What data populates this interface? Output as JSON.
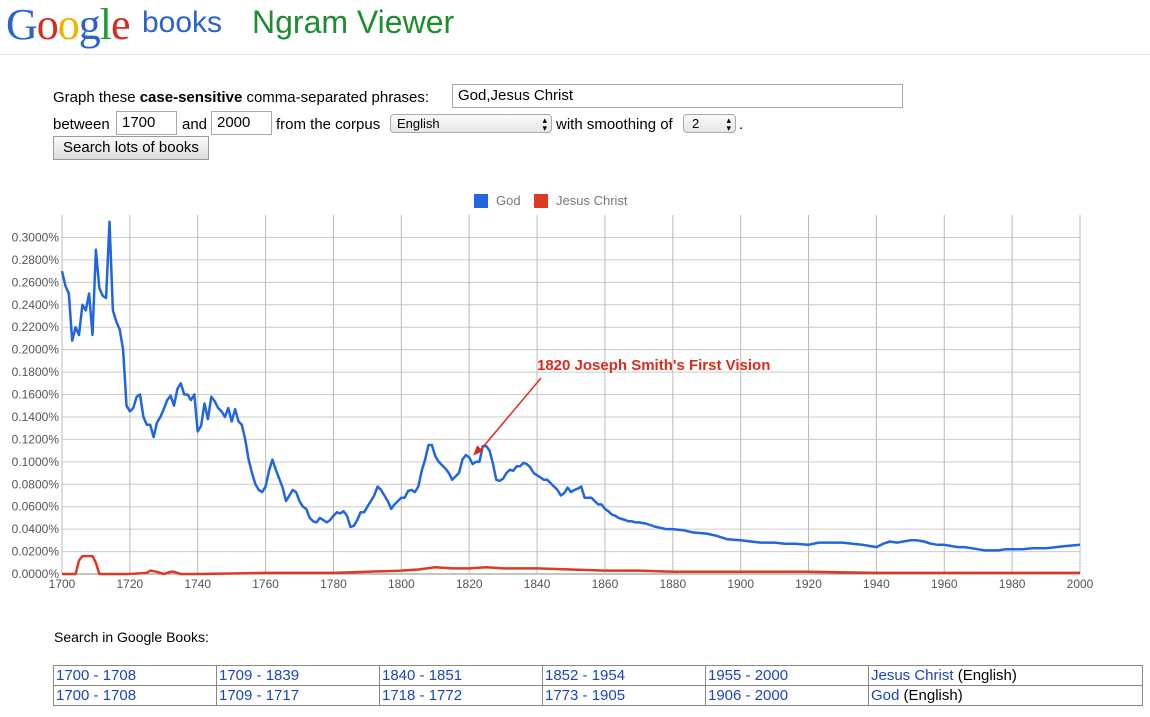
{
  "header": {
    "logo_letters": [
      {
        "ch": "G",
        "color": "#2a62d4"
      },
      {
        "ch": "o",
        "color": "#d62d20"
      },
      {
        "ch": "o",
        "color": "#f1b200"
      },
      {
        "ch": "g",
        "color": "#2a62d4"
      },
      {
        "ch": "l",
        "color": "#1e9e36"
      },
      {
        "ch": "e",
        "color": "#d62d20"
      }
    ],
    "books_text": "books",
    "title": "Ngram Viewer"
  },
  "form": {
    "graph_prefix": "Graph these ",
    "graph_bold": "case-sensitive",
    "graph_suffix": " comma-separated phrases:",
    "phrases_value": "God,Jesus Christ",
    "between_label": "between",
    "start_year": "1700",
    "and_label": "and",
    "end_year": "2000",
    "corpus_label": "from the corpus",
    "corpus_value": "English",
    "smoothing_label": "with smoothing of",
    "smoothing_value": "2",
    "period": ".",
    "search_button": "Search lots of books"
  },
  "chart_data": {
    "type": "line",
    "xlim": [
      1700,
      2000
    ],
    "ylim": [
      0,
      0.32
    ],
    "x_ticks": [
      1700,
      1720,
      1740,
      1760,
      1780,
      1800,
      1820,
      1840,
      1860,
      1880,
      1900,
      1920,
      1940,
      1960,
      1980,
      2000
    ],
    "y_ticks": [
      0,
      0.02,
      0.04,
      0.06,
      0.08,
      0.1,
      0.12,
      0.14,
      0.16,
      0.18,
      0.2,
      0.22,
      0.24,
      0.26,
      0.28,
      0.3
    ],
    "y_tick_labels": [
      "0.0000%",
      "0.0200%",
      "0.0400%",
      "0.0600%",
      "0.0800%",
      "0.1000%",
      "0.1200%",
      "0.1400%",
      "0.1600%",
      "0.1800%",
      "0.2000%",
      "0.2200%",
      "0.2400%",
      "0.2600%",
      "0.2800%",
      "0.3000%"
    ],
    "grid": true,
    "legend_position": "top",
    "annotation": {
      "text": "1820 Joseph Smith's First Vision",
      "x": 1820,
      "y": 0.086,
      "color": "#dd2a1b"
    },
    "series": [
      {
        "name": "God",
        "color": "#2166e0",
        "points": [
          [
            1700,
            0.27
          ],
          [
            1701,
            0.257
          ],
          [
            1702,
            0.25
          ],
          [
            1703,
            0.208
          ],
          [
            1704,
            0.22
          ],
          [
            1705,
            0.213
          ],
          [
            1706,
            0.24
          ],
          [
            1707,
            0.235
          ],
          [
            1708,
            0.25
          ],
          [
            1709,
            0.213
          ],
          [
            1710,
            0.289
          ],
          [
            1711,
            0.255
          ],
          [
            1712,
            0.248
          ],
          [
            1713,
            0.246
          ],
          [
            1714,
            0.314
          ],
          [
            1715,
            0.235
          ],
          [
            1716,
            0.225
          ],
          [
            1717,
            0.218
          ],
          [
            1718,
            0.2
          ],
          [
            1719,
            0.15
          ],
          [
            1720,
            0.145
          ],
          [
            1721,
            0.148
          ],
          [
            1722,
            0.158
          ],
          [
            1723,
            0.16
          ],
          [
            1724,
            0.14
          ],
          [
            1725,
            0.133
          ],
          [
            1726,
            0.133
          ],
          [
            1727,
            0.122
          ],
          [
            1728,
            0.135
          ],
          [
            1729,
            0.14
          ],
          [
            1730,
            0.147
          ],
          [
            1731,
            0.155
          ],
          [
            1732,
            0.159
          ],
          [
            1733,
            0.15
          ],
          [
            1734,
            0.165
          ],
          [
            1735,
            0.17
          ],
          [
            1736,
            0.16
          ],
          [
            1737,
            0.16
          ],
          [
            1738,
            0.155
          ],
          [
            1739,
            0.16
          ],
          [
            1740,
            0.127
          ],
          [
            1741,
            0.132
          ],
          [
            1742,
            0.152
          ],
          [
            1743,
            0.138
          ],
          [
            1744,
            0.158
          ],
          [
            1745,
            0.154
          ],
          [
            1746,
            0.148
          ],
          [
            1747,
            0.145
          ],
          [
            1748,
            0.14
          ],
          [
            1749,
            0.148
          ],
          [
            1750,
            0.136
          ],
          [
            1751,
            0.147
          ],
          [
            1752,
            0.136
          ],
          [
            1753,
            0.133
          ],
          [
            1754,
            0.12
          ],
          [
            1755,
            0.102
          ],
          [
            1756,
            0.09
          ],
          [
            1757,
            0.08
          ],
          [
            1758,
            0.075
          ],
          [
            1759,
            0.073
          ],
          [
            1760,
            0.078
          ],
          [
            1761,
            0.092
          ],
          [
            1762,
            0.102
          ],
          [
            1763,
            0.093
          ],
          [
            1764,
            0.085
          ],
          [
            1765,
            0.077
          ],
          [
            1766,
            0.065
          ],
          [
            1767,
            0.07
          ],
          [
            1768,
            0.075
          ],
          [
            1769,
            0.073
          ],
          [
            1770,
            0.065
          ],
          [
            1771,
            0.06
          ],
          [
            1772,
            0.058
          ],
          [
            1773,
            0.05
          ],
          [
            1774,
            0.047
          ],
          [
            1775,
            0.046
          ],
          [
            1776,
            0.05
          ],
          [
            1777,
            0.048
          ],
          [
            1778,
            0.046
          ],
          [
            1779,
            0.048
          ],
          [
            1780,
            0.052
          ],
          [
            1781,
            0.055
          ],
          [
            1782,
            0.054
          ],
          [
            1783,
            0.056
          ],
          [
            1784,
            0.052
          ],
          [
            1785,
            0.042
          ],
          [
            1786,
            0.043
          ],
          [
            1787,
            0.048
          ],
          [
            1788,
            0.055
          ],
          [
            1789,
            0.055
          ],
          [
            1790,
            0.06
          ],
          [
            1791,
            0.065
          ],
          [
            1792,
            0.07
          ],
          [
            1793,
            0.078
          ],
          [
            1794,
            0.075
          ],
          [
            1795,
            0.07
          ],
          [
            1796,
            0.065
          ],
          [
            1797,
            0.058
          ],
          [
            1798,
            0.062
          ],
          [
            1799,
            0.065
          ],
          [
            1800,
            0.068
          ],
          [
            1801,
            0.068
          ],
          [
            1802,
            0.074
          ],
          [
            1803,
            0.075
          ],
          [
            1804,
            0.073
          ],
          [
            1805,
            0.078
          ],
          [
            1806,
            0.092
          ],
          [
            1807,
            0.102
          ],
          [
            1808,
            0.115
          ],
          [
            1809,
            0.115
          ],
          [
            1810,
            0.105
          ],
          [
            1811,
            0.1
          ],
          [
            1812,
            0.097
          ],
          [
            1813,
            0.094
          ],
          [
            1814,
            0.09
          ],
          [
            1815,
            0.084
          ],
          [
            1816,
            0.087
          ],
          [
            1817,
            0.09
          ],
          [
            1818,
            0.102
          ],
          [
            1819,
            0.106
          ],
          [
            1820,
            0.104
          ],
          [
            1821,
            0.098
          ],
          [
            1822,
            0.1
          ],
          [
            1823,
            0.1
          ],
          [
            1824,
            0.114
          ],
          [
            1825,
            0.114
          ],
          [
            1826,
            0.11
          ],
          [
            1827,
            0.098
          ],
          [
            1828,
            0.084
          ],
          [
            1829,
            0.083
          ],
          [
            1830,
            0.085
          ],
          [
            1831,
            0.09
          ],
          [
            1832,
            0.093
          ],
          [
            1833,
            0.092
          ],
          [
            1834,
            0.096
          ],
          [
            1835,
            0.096
          ],
          [
            1836,
            0.099
          ],
          [
            1837,
            0.098
          ],
          [
            1838,
            0.095
          ],
          [
            1839,
            0.09
          ],
          [
            1840,
            0.088
          ],
          [
            1841,
            0.086
          ],
          [
            1842,
            0.084
          ],
          [
            1843,
            0.084
          ],
          [
            1844,
            0.081
          ],
          [
            1845,
            0.078
          ],
          [
            1846,
            0.075
          ],
          [
            1847,
            0.07
          ],
          [
            1848,
            0.072
          ],
          [
            1849,
            0.077
          ],
          [
            1850,
            0.073
          ],
          [
            1851,
            0.075
          ],
          [
            1852,
            0.076
          ],
          [
            1853,
            0.078
          ],
          [
            1854,
            0.068
          ],
          [
            1855,
            0.068
          ],
          [
            1856,
            0.068
          ],
          [
            1857,
            0.065
          ],
          [
            1858,
            0.062
          ],
          [
            1859,
            0.062
          ],
          [
            1860,
            0.058
          ],
          [
            1861,
            0.056
          ],
          [
            1862,
            0.053
          ],
          [
            1863,
            0.052
          ],
          [
            1864,
            0.05
          ],
          [
            1865,
            0.049
          ],
          [
            1866,
            0.048
          ],
          [
            1867,
            0.047
          ],
          [
            1868,
            0.047
          ],
          [
            1869,
            0.046
          ],
          [
            1870,
            0.046
          ],
          [
            1872,
            0.045
          ],
          [
            1875,
            0.042
          ],
          [
            1878,
            0.04
          ],
          [
            1880,
            0.04
          ],
          [
            1883,
            0.039
          ],
          [
            1886,
            0.037
          ],
          [
            1890,
            0.036
          ],
          [
            1893,
            0.034
          ],
          [
            1896,
            0.031
          ],
          [
            1900,
            0.03
          ],
          [
            1903,
            0.029
          ],
          [
            1906,
            0.028
          ],
          [
            1910,
            0.028
          ],
          [
            1913,
            0.027
          ],
          [
            1916,
            0.027
          ],
          [
            1920,
            0.026
          ],
          [
            1923,
            0.028
          ],
          [
            1926,
            0.028
          ],
          [
            1930,
            0.028
          ],
          [
            1933,
            0.027
          ],
          [
            1936,
            0.026
          ],
          [
            1938,
            0.025
          ],
          [
            1940,
            0.024
          ],
          [
            1942,
            0.027
          ],
          [
            1944,
            0.029
          ],
          [
            1946,
            0.028
          ],
          [
            1948,
            0.029
          ],
          [
            1950,
            0.03
          ],
          [
            1952,
            0.03
          ],
          [
            1954,
            0.029
          ],
          [
            1956,
            0.027
          ],
          [
            1958,
            0.026
          ],
          [
            1960,
            0.026
          ],
          [
            1962,
            0.025
          ],
          [
            1964,
            0.024
          ],
          [
            1966,
            0.024
          ],
          [
            1968,
            0.023
          ],
          [
            1970,
            0.022
          ],
          [
            1972,
            0.021
          ],
          [
            1974,
            0.021
          ],
          [
            1976,
            0.021
          ],
          [
            1978,
            0.022
          ],
          [
            1980,
            0.022
          ],
          [
            1983,
            0.022
          ],
          [
            1986,
            0.023
          ],
          [
            1990,
            0.023
          ],
          [
            1993,
            0.024
          ],
          [
            1996,
            0.025
          ],
          [
            2000,
            0.026
          ]
        ]
      },
      {
        "name": "Jesus Christ",
        "color": "#dc3a23",
        "points": [
          [
            1700,
            0.0
          ],
          [
            1704,
            0.0
          ],
          [
            1705,
            0.012
          ],
          [
            1706,
            0.016
          ],
          [
            1707,
            0.016
          ],
          [
            1708,
            0.016
          ],
          [
            1709,
            0.016
          ],
          [
            1710,
            0.01
          ],
          [
            1711,
            0.0
          ],
          [
            1720,
            0.0
          ],
          [
            1725,
            0.001
          ],
          [
            1726,
            0.003
          ],
          [
            1728,
            0.002
          ],
          [
            1730,
            0.0
          ],
          [
            1732,
            0.002
          ],
          [
            1733,
            0.002
          ],
          [
            1735,
            0.0
          ],
          [
            1740,
            0.0
          ],
          [
            1760,
            0.001
          ],
          [
            1780,
            0.001
          ],
          [
            1790,
            0.002
          ],
          [
            1800,
            0.003
          ],
          [
            1805,
            0.004
          ],
          [
            1810,
            0.006
          ],
          [
            1815,
            0.005
          ],
          [
            1820,
            0.005
          ],
          [
            1825,
            0.006
          ],
          [
            1830,
            0.005
          ],
          [
            1840,
            0.005
          ],
          [
            1850,
            0.004
          ],
          [
            1860,
            0.003
          ],
          [
            1870,
            0.003
          ],
          [
            1880,
            0.002
          ],
          [
            1900,
            0.002
          ],
          [
            1920,
            0.002
          ],
          [
            1940,
            0.001
          ],
          [
            1960,
            0.001
          ],
          [
            1980,
            0.001
          ],
          [
            2000,
            0.001
          ]
        ]
      }
    ]
  },
  "search_label": "Search in Google Books:",
  "links_table": [
    {
      "ranges": [
        "1700 - 1708",
        "1709 - 1839",
        "1840 - 1851",
        "1852 - 1954",
        "1955 - 2000"
      ],
      "term": "Jesus Christ",
      "lang": " (English)"
    },
    {
      "ranges": [
        "1700 - 1708",
        "1709 - 1717",
        "1718 - 1772",
        "1773 - 1905",
        "1906 - 2000"
      ],
      "term": "God",
      "lang": " (English)"
    }
  ]
}
